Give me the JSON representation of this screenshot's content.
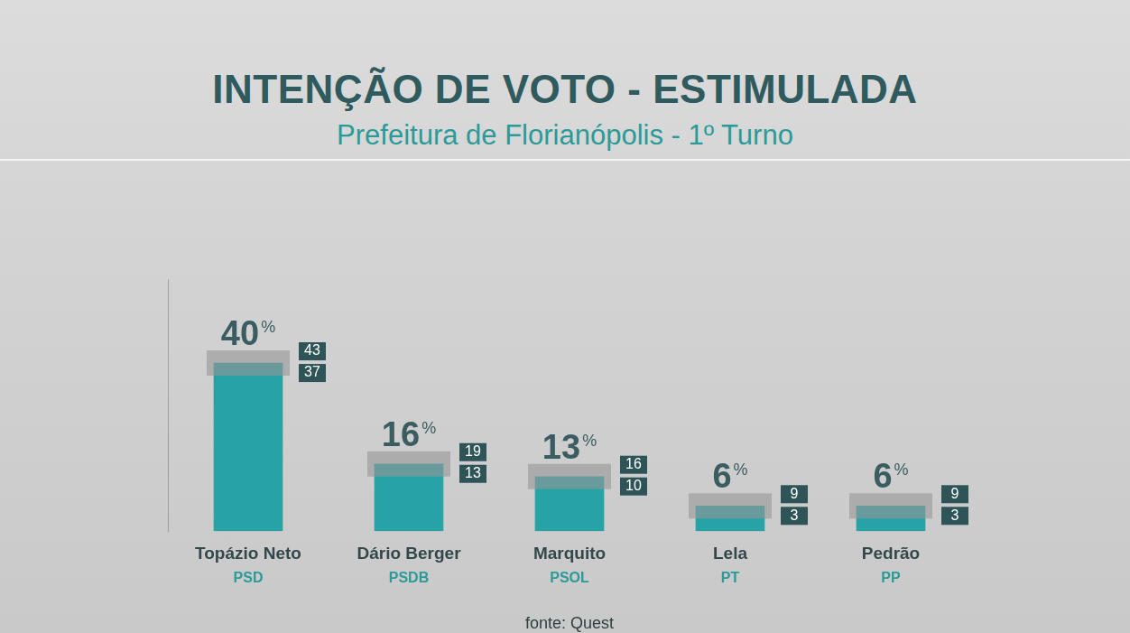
{
  "chart_data": {
    "type": "bar",
    "title": "INTENÇÃO DE VOTO - ESTIMULADA",
    "subtitle": "Prefeitura de Florianópolis - 1º Turno",
    "categories": [
      "Topázio Neto",
      "Dário Berger",
      "Marquito",
      "Lela",
      "Pedrão"
    ],
    "parties": [
      "PSD",
      "PSDB",
      "PSOL",
      "PT",
      "PP"
    ],
    "values": [
      40,
      16,
      13,
      6,
      6
    ],
    "value_labels": [
      "40%",
      "16%",
      "13%",
      "6%",
      "6%"
    ],
    "error_high": [
      43,
      19,
      16,
      9,
      9
    ],
    "error_low": [
      37,
      13,
      10,
      3,
      3
    ],
    "color": "#27a3a6",
    "ylim": [
      0,
      60
    ],
    "grid": false,
    "data_labels": true,
    "tick_labels": "x",
    "source": "fonte: Quest"
  }
}
